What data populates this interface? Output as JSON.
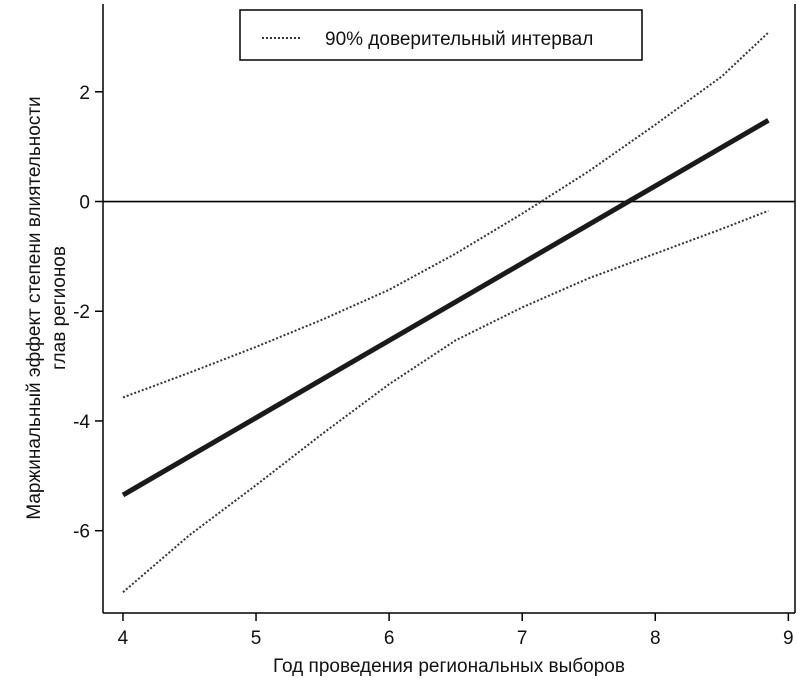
{
  "chart_data": {
    "type": "line",
    "xlabel": "Год проведения региональных выборов",
    "ylabel_lines": [
      "Маржинальный эффект степени влиятельности",
      "глав регионов"
    ],
    "xlim": [
      3.85,
      9.05
    ],
    "ylim": [
      -7.5,
      3.6
    ],
    "xticks": [
      4,
      5,
      6,
      7,
      8,
      9
    ],
    "yticks": [
      -6,
      -4,
      -2,
      0,
      2
    ],
    "reference_line_y": 0,
    "legend": {
      "label": "90% доверительный интервал",
      "placement": "top-center",
      "style": "dotted"
    },
    "series": [
      {
        "role": "estimate",
        "style": "solid-thick",
        "x": [
          4.0,
          8.85
        ],
        "y": [
          -5.35,
          1.48
        ]
      },
      {
        "role": "upper-ci",
        "style": "dotted",
        "x": [
          4.0,
          4.5,
          5.0,
          5.5,
          6.0,
          6.5,
          7.0,
          7.5,
          8.0,
          8.5,
          8.85
        ],
        "y": [
          -3.57,
          -3.12,
          -2.65,
          -2.15,
          -1.61,
          -0.95,
          -0.22,
          0.55,
          1.4,
          2.28,
          3.08
        ]
      },
      {
        "role": "lower-ci",
        "style": "dotted",
        "x": [
          4.0,
          4.5,
          5.0,
          5.5,
          6.0,
          6.5,
          7.0,
          7.5,
          8.0,
          8.5,
          8.85
        ],
        "y": [
          -7.12,
          -6.08,
          -5.17,
          -4.23,
          -3.33,
          -2.53,
          -1.93,
          -1.4,
          -0.95,
          -0.5,
          -0.17
        ]
      }
    ]
  }
}
